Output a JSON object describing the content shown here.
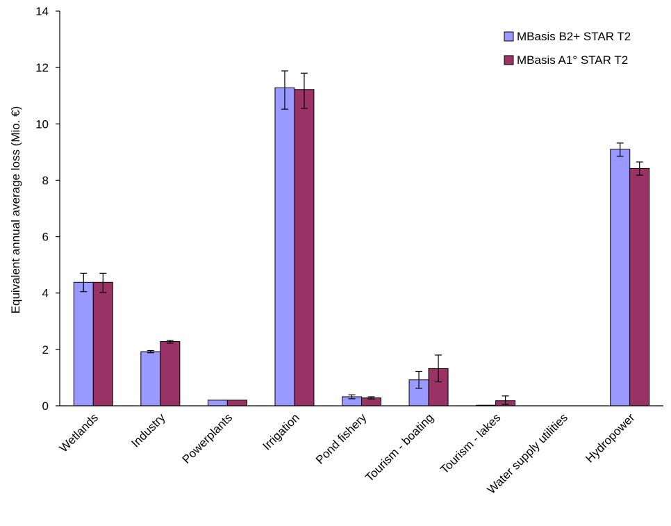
{
  "chart_data": {
    "type": "bar",
    "title": "",
    "xlabel": "",
    "ylabel": "Equivalent annual average loss (Mio. €)",
    "ylim": [
      0,
      14
    ],
    "yticks": [
      0,
      2,
      4,
      6,
      8,
      10,
      12,
      14
    ],
    "grid": false,
    "legend_position": "top-right",
    "categories": [
      "Wetlands",
      "Industry",
      "Powerplants",
      "Irrigation",
      "Pond fishery",
      "Tourism - boating",
      "Tourism - lakes",
      "Water supply utilities",
      "Hydropower"
    ],
    "series": [
      {
        "name": "MBasis B2+ STAR T2",
        "color": "#9999ff",
        "values": [
          4.38,
          1.92,
          0.2,
          11.28,
          0.32,
          0.92,
          0.02,
          0.0,
          9.1
        ],
        "error_low": [
          4.05,
          1.88,
          0.2,
          10.52,
          0.25,
          0.62,
          0.02,
          0.0,
          8.85
        ],
        "error_high": [
          4.7,
          1.96,
          0.2,
          11.88,
          0.39,
          1.22,
          0.02,
          0.0,
          9.32
        ]
      },
      {
        "name": "MBasis A1° STAR T2",
        "color": "#993366",
        "values": [
          4.38,
          2.28,
          0.2,
          11.22,
          0.28,
          1.32,
          0.18,
          0.0,
          8.42
        ],
        "error_low": [
          4.02,
          2.22,
          0.2,
          10.55,
          0.24,
          0.85,
          0.05,
          0.0,
          8.18
        ],
        "error_high": [
          4.7,
          2.32,
          0.2,
          11.8,
          0.32,
          1.8,
          0.35,
          0.0,
          8.65
        ]
      }
    ]
  }
}
